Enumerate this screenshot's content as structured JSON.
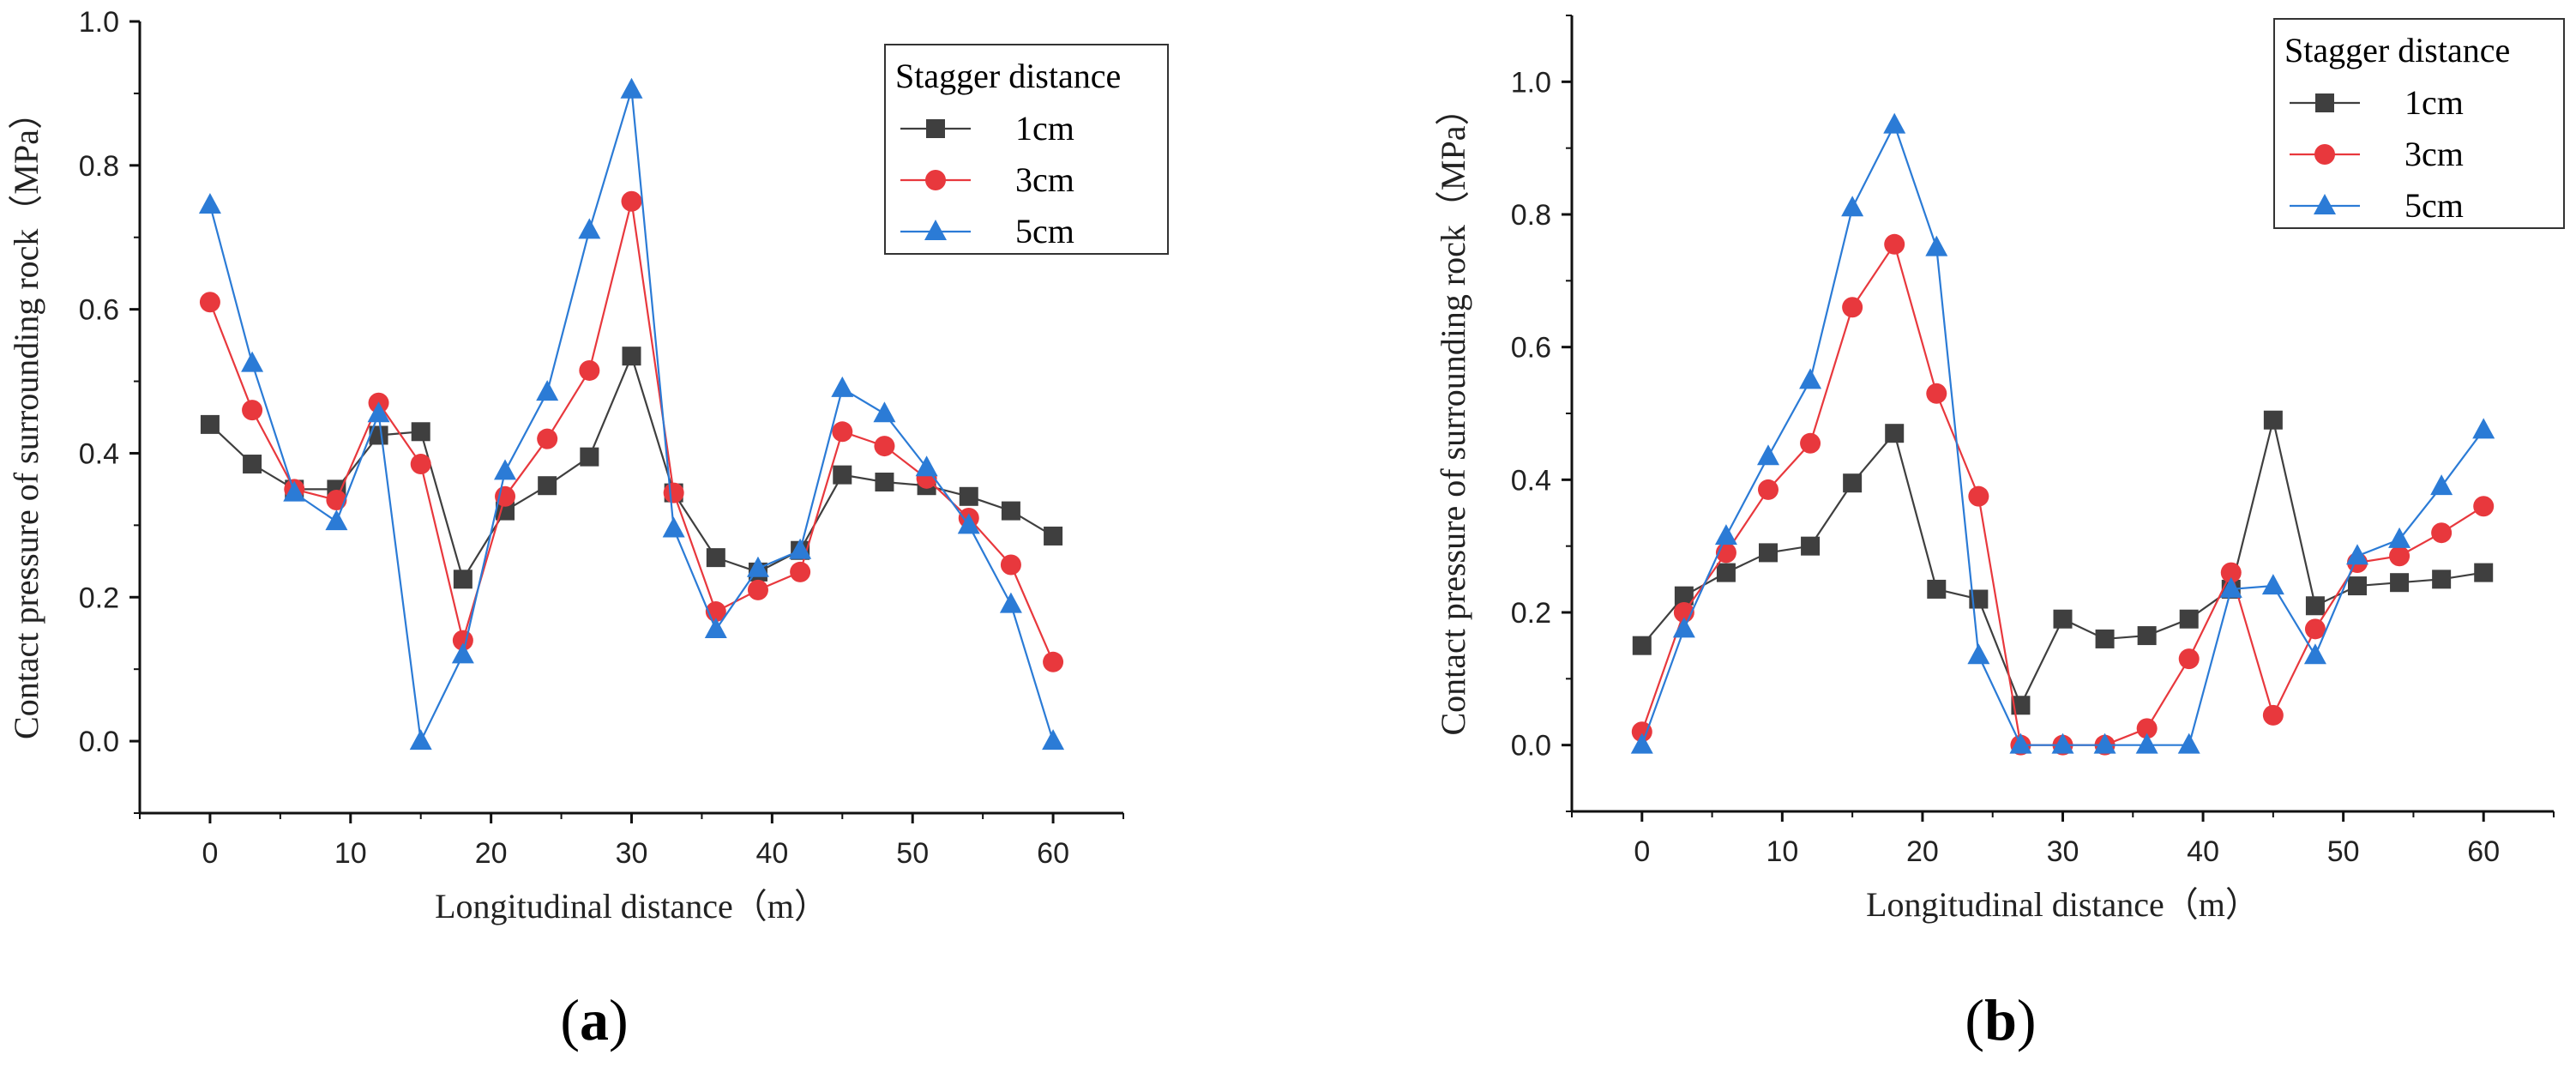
{
  "chart_data": [
    {
      "type": "line",
      "panel_label": "(a)",
      "xlabel": "Longitudinal distance（m）",
      "ylabel": "Contact pressure of surrounding rock（MPa）",
      "xlim": [
        -5,
        65
      ],
      "ylim": [
        -0.1,
        1.0
      ],
      "xticks": [
        0,
        10,
        20,
        30,
        40,
        50,
        60
      ],
      "yticks": [
        0.0,
        0.2,
        0.4,
        0.6,
        0.8,
        1.0
      ],
      "ytick_labels": [
        "0.0",
        "0.2",
        "0.4",
        "0.6",
        "0.8",
        "1.0"
      ],
      "legend_title": "Stagger distance",
      "legend_position": "top-right",
      "x": [
        0,
        3,
        6,
        9,
        12,
        15,
        18,
        21,
        24,
        27,
        30,
        33,
        36,
        39,
        42,
        45,
        48,
        51,
        54,
        57,
        60
      ],
      "series": [
        {
          "name": "1cm",
          "marker": "square",
          "color": "#3f3f3f",
          "values": [
            0.44,
            0.385,
            0.35,
            0.35,
            0.425,
            0.43,
            0.225,
            0.32,
            0.355,
            0.395,
            0.535,
            0.345,
            0.255,
            0.235,
            0.265,
            0.37,
            0.36,
            0.355,
            0.34,
            0.32,
            0.285
          ]
        },
        {
          "name": "3cm",
          "marker": "circle",
          "color": "#e8383d",
          "values": [
            0.61,
            0.46,
            0.35,
            0.335,
            0.47,
            0.385,
            0.14,
            0.34,
            0.42,
            0.515,
            0.75,
            0.345,
            0.18,
            0.21,
            0.235,
            0.43,
            0.41,
            0.365,
            0.31,
            0.245,
            0.11
          ]
        },
        {
          "name": "5cm",
          "marker": "triangle",
          "color": "#2b7bd6",
          "values": [
            0.745,
            0.525,
            0.345,
            0.305,
            0.455,
            0.0,
            0.12,
            0.375,
            0.485,
            0.71,
            0.905,
            0.295,
            0.155,
            0.24,
            0.265,
            0.49,
            0.455,
            0.38,
            0.3,
            0.19,
            0.0
          ]
        }
      ]
    },
    {
      "type": "line",
      "panel_label": "(b)",
      "xlabel": "Longitudinal distance（m）",
      "ylabel": "Contact pressure of surrounding rock（MPa）",
      "xlim": [
        -5,
        65
      ],
      "ylim": [
        -0.1,
        1.1
      ],
      "xticks": [
        0,
        10,
        20,
        30,
        40,
        50,
        60
      ],
      "yticks": [
        0.0,
        0.2,
        0.4,
        0.6,
        0.8,
        1.0
      ],
      "ytick_labels": [
        "0.0",
        "0.2",
        "0.4",
        "0.6",
        "0.8",
        "1.0"
      ],
      "legend_title": "Stagger distance",
      "legend_position": "top-right",
      "x": [
        0,
        3,
        6,
        9,
        12,
        15,
        18,
        21,
        24,
        27,
        30,
        33,
        36,
        39,
        42,
        45,
        48,
        51,
        54,
        57,
        60
      ],
      "series": [
        {
          "name": "1cm",
          "marker": "square",
          "color": "#3f3f3f",
          "values": [
            0.15,
            0.225,
            0.26,
            0.29,
            0.3,
            0.395,
            0.47,
            0.235,
            0.22,
            0.06,
            0.19,
            0.16,
            0.165,
            0.19,
            0.235,
            0.49,
            0.21,
            0.24,
            0.245,
            0.25,
            0.26
          ]
        },
        {
          "name": "3cm",
          "marker": "circle",
          "color": "#e8383d",
          "values": [
            0.02,
            0.2,
            0.29,
            0.385,
            0.455,
            0.66,
            0.755,
            0.53,
            0.375,
            0.0,
            0.0,
            0.0,
            0.025,
            0.13,
            0.26,
            0.045,
            0.175,
            0.275,
            0.285,
            0.32,
            0.36
          ]
        },
        {
          "name": "5cm",
          "marker": "triangle",
          "color": "#2b7bd6",
          "values": [
            0.0,
            0.175,
            0.315,
            0.435,
            0.55,
            0.81,
            0.935,
            0.75,
            0.135,
            0.0,
            0.0,
            0.0,
            0.0,
            0.0,
            0.235,
            0.24,
            0.135,
            0.285,
            0.31,
            0.39,
            0.475
          ]
        }
      ]
    }
  ]
}
